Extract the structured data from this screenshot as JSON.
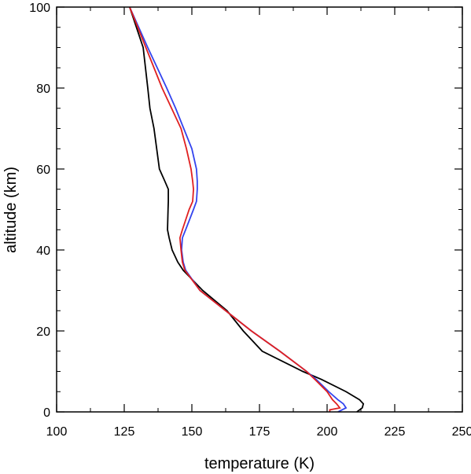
{
  "chart_data": {
    "type": "line",
    "xlabel": "temperature (K)",
    "ylabel": "altitude (km)",
    "y": [
      0,
      0.5,
      1,
      2,
      3,
      5,
      8,
      10,
      15,
      20,
      25,
      30,
      35,
      37,
      40,
      43,
      45,
      50,
      52,
      55,
      57,
      60,
      65,
      70,
      75,
      80,
      90,
      100
    ],
    "series": [
      {
        "color": "#000000",
        "values": [
          211,
          212,
          213,
          213.4,
          212,
          207,
          198,
          191,
          176,
          169,
          163,
          154,
          146.8,
          144.8,
          142.7,
          141.6,
          141,
          141.2,
          141.3,
          141.3,
          140,
          138,
          137,
          136,
          134.5,
          133.7,
          132,
          127
        ]
      },
      {
        "color": "#3344ee",
        "values": [
          204,
          205.5,
          207,
          206,
          204,
          200.6,
          196,
          192.4,
          182.5,
          172,
          162.5,
          153,
          147.7,
          146.8,
          146.2,
          146.5,
          147.7,
          150.6,
          151.7,
          152,
          152,
          151.7,
          150,
          147,
          144,
          140.7,
          133.7,
          127
        ]
      },
      {
        "color": "#e02020",
        "values": [
          201,
          201,
          204.7,
          203.5,
          202,
          200,
          195.5,
          192.4,
          182.5,
          172,
          162.5,
          153,
          147.4,
          146.5,
          146,
          145.6,
          146.5,
          149,
          150.3,
          150.6,
          150.3,
          149.7,
          148,
          146,
          142.5,
          139,
          133,
          127
        ]
      }
    ],
    "xlim": [
      100,
      250
    ],
    "xticks": [
      100,
      125,
      150,
      175,
      200,
      225,
      250
    ],
    "xminorticks": [
      112.5,
      137.5,
      162.5,
      187.5,
      212.5,
      237.5
    ],
    "ylim": [
      0,
      100
    ],
    "yticks": [
      0,
      20,
      40,
      60,
      80,
      100
    ],
    "yminorticks": [
      5,
      10,
      15,
      25,
      30,
      35,
      45,
      50,
      55,
      65,
      70,
      75,
      85,
      90,
      95
    ]
  }
}
